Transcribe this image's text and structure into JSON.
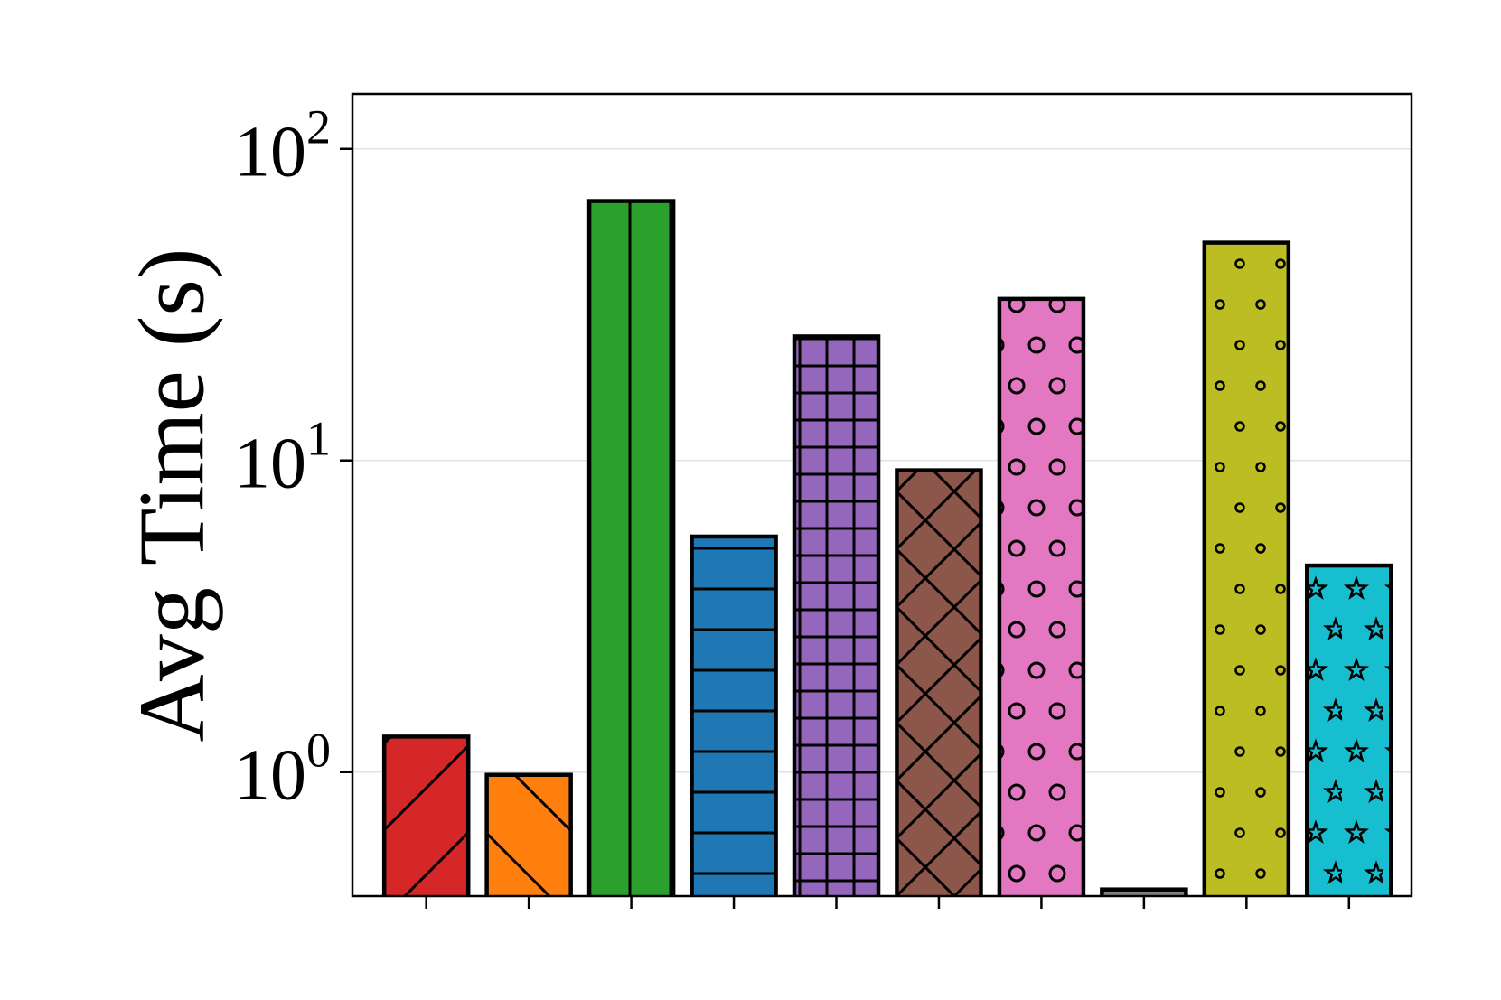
{
  "chart_data": {
    "type": "bar",
    "title": "",
    "xlabel": "",
    "ylabel": "Avg Time (s)",
    "y_scale": "log",
    "ylim": [
      0.4,
      150
    ],
    "yticks": [
      {
        "value": 1,
        "base": "10",
        "exp": "0"
      },
      {
        "value": 10,
        "base": "10",
        "exp": "1"
      },
      {
        "value": 100,
        "base": "10",
        "exp": "2"
      }
    ],
    "grid": true,
    "legend": "none",
    "categories": [
      "",
      "",
      "",
      "",
      "",
      "",
      "",
      "",
      "",
      ""
    ],
    "values": [
      1.3,
      0.98,
      68,
      5.7,
      25,
      9.3,
      33,
      0.42,
      50,
      4.6
    ],
    "bar_colors": [
      "#d62728",
      "#ff7f0e",
      "#2ca02c",
      "#1f77b4",
      "#9467bd",
      "#8c564b",
      "#e377c2",
      "#7f7f7f",
      "#bcbd22",
      "#17becf"
    ],
    "hatches": [
      "diag-fwd",
      "diag-back",
      "vertical",
      "horizontal",
      "grid",
      "cross",
      "circle-large",
      "circle-large",
      "circle-small",
      "star"
    ]
  }
}
